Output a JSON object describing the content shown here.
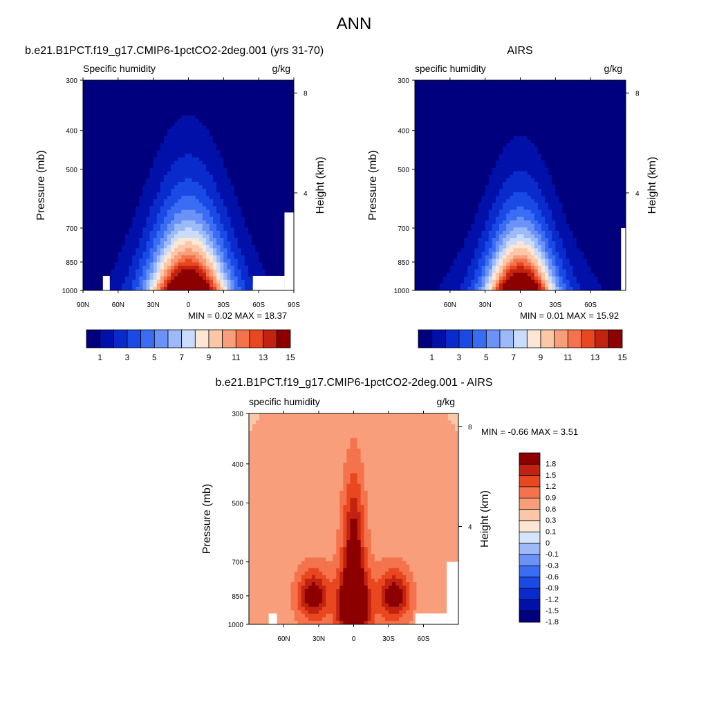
{
  "page": {
    "title": "ANN"
  },
  "chart_data": [
    {
      "type": "heatmap",
      "id": "panel-model",
      "title": "b.e21.B1PCT.f19_g17.CMIP6-1pctCO2-2deg.001 (yrs 31-70)",
      "left_label": "Specific humidity",
      "right_label": "g/kg",
      "ylabel": "Pressure (mb)",
      "ylabel_right": "Height (km)",
      "x_ticks": [
        "90N",
        "60N",
        "30N",
        "0",
        "30S",
        "60S",
        "90S"
      ],
      "x_tick_values": [
        90,
        60,
        30,
        0,
        -30,
        -60,
        -90
      ],
      "xlim": [
        90,
        -90
      ],
      "y_ticks": [
        300,
        400,
        500,
        700,
        850,
        1000
      ],
      "ylim": [
        300,
        1000
      ],
      "y_scale": "log",
      "height_ticks": [
        "8",
        "4"
      ],
      "height_tick_values": [
        8,
        4
      ],
      "stats": {
        "min_label": "MIN =",
        "min": "0.02",
        "max_label": "MAX =",
        "max": "18.37"
      },
      "levels": [
        1,
        2,
        3,
        4,
        5,
        6,
        7,
        8,
        9,
        10,
        11,
        12,
        13,
        14,
        15
      ],
      "colorbar_labels": [
        "1",
        "3",
        "5",
        "7",
        "9",
        "11",
        "13",
        "15"
      ],
      "field_description_values": {
        "peak_value": 18.37,
        "peak_lat": 0,
        "peak_pressure": 1000
      }
    },
    {
      "type": "heatmap",
      "id": "panel-obs",
      "title": "AIRS",
      "left_label": "specific humidity",
      "right_label": "g/kg",
      "ylabel": "Pressure (mb)",
      "ylabel_right": "Height (km)",
      "x_ticks": [
        "60N",
        "30N",
        "0",
        "30S",
        "60S"
      ],
      "x_tick_values": [
        60,
        30,
        0,
        -30,
        -60
      ],
      "xlim": [
        90,
        -90
      ],
      "y_ticks": [
        300,
        400,
        500,
        700,
        850,
        1000
      ],
      "ylim": [
        300,
        1000
      ],
      "y_scale": "log",
      "height_ticks": [
        "8",
        "4"
      ],
      "height_tick_values": [
        8,
        4
      ],
      "stats": {
        "min_label": "MIN =",
        "min": "0.01",
        "max_label": "MAX =",
        "max": "15.92"
      },
      "levels": [
        1,
        2,
        3,
        4,
        5,
        6,
        7,
        8,
        9,
        10,
        11,
        12,
        13,
        14,
        15
      ],
      "colorbar_labels": [
        "1",
        "3",
        "5",
        "7",
        "9",
        "11",
        "13",
        "15"
      ]
    },
    {
      "type": "heatmap",
      "id": "panel-diff",
      "title": "b.e21.B1PCT.f19_g17.CMIP6-1pctCO2-2deg.001 - AIRS",
      "left_label": "specific humidity",
      "right_label": "g/kg",
      "ylabel": "Pressure (mb)",
      "ylabel_right": "Height (km)",
      "x_ticks": [
        "60N",
        "30N",
        "0",
        "30S",
        "60S"
      ],
      "x_tick_values": [
        60,
        30,
        0,
        -30,
        -60
      ],
      "xlim": [
        90,
        -90
      ],
      "y_ticks": [
        300,
        400,
        500,
        700,
        850,
        1000
      ],
      "ylim": [
        300,
        1000
      ],
      "y_scale": "log",
      "height_ticks": [
        "8",
        "4"
      ],
      "height_tick_values": [
        8,
        4
      ],
      "stats": {
        "min_label": "MIN =",
        "min": "-0.66",
        "max_label": "MAX =",
        "max": "3.51"
      },
      "levels": [
        -1.8,
        -1.5,
        -1.2,
        -0.9,
        -0.6,
        -0.3,
        -0.1,
        0,
        0.1,
        0.3,
        0.6,
        0.9,
        1.2,
        1.5,
        1.8
      ],
      "colorbar_labels": [
        "1.8",
        "1.5",
        "1.2",
        "0.9",
        "0.6",
        "0.3",
        "0.1",
        "0",
        "-0.1",
        "-0.3",
        "-0.6",
        "-0.9",
        "-1.2",
        "-1.5",
        "-1.8"
      ]
    }
  ],
  "colors": {
    "seq": [
      "#00007f",
      "#0010a8",
      "#0a2bcc",
      "#1a4ae6",
      "#3a6cf4",
      "#6b93f7",
      "#9cb9f8",
      "#cadcfb",
      "#fde6d4",
      "#fbc7a6",
      "#f89e7a",
      "#f5734c",
      "#e9471f",
      "#c22210",
      "#8c0000"
    ],
    "div": [
      "#00007f",
      "#0010a8",
      "#0a2bcc",
      "#1a4ae6",
      "#3a6cf4",
      "#6b93f7",
      "#9cb9f8",
      "#d6e4fb",
      "#fde6d4",
      "#fbc7a6",
      "#f89e7a",
      "#f5734c",
      "#e9471f",
      "#c22210",
      "#8c0000"
    ]
  }
}
